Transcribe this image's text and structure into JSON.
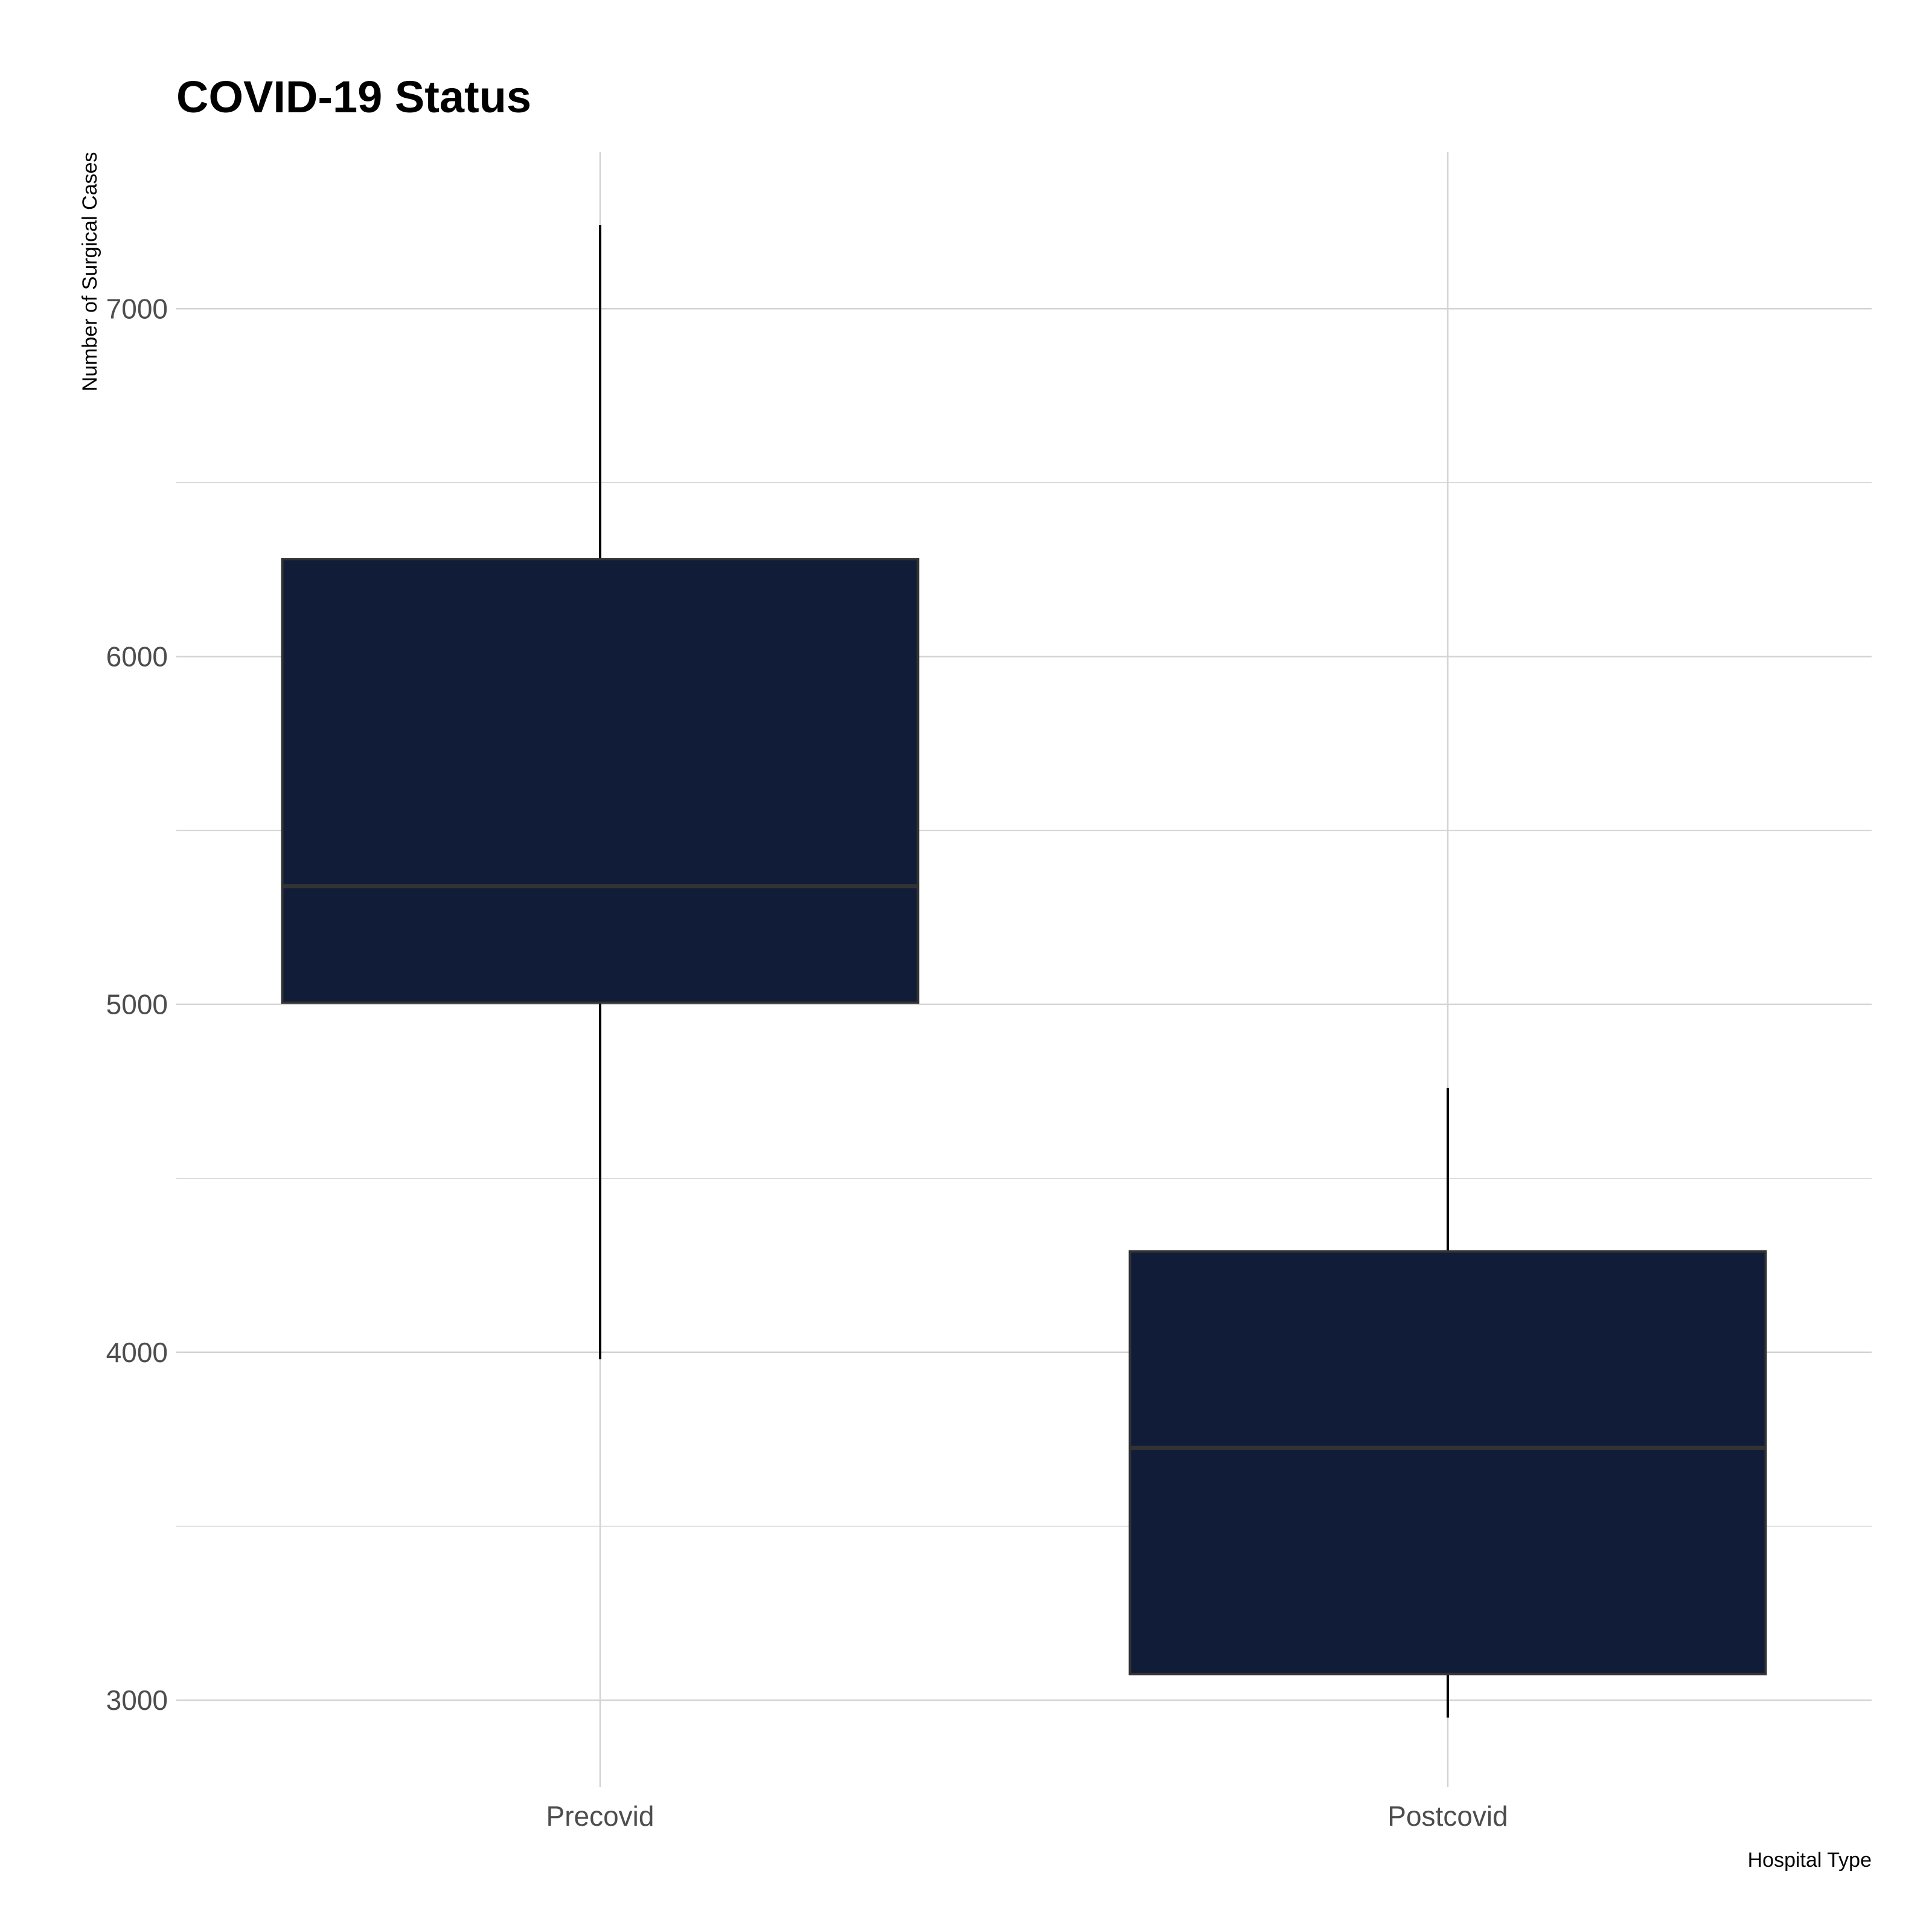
{
  "chart_data": {
    "type": "boxplot",
    "title": "COVID-19 Status",
    "xlabel": "Hospital Type",
    "ylabel": "Number of Surgical Cases",
    "categories": [
      "Precovid",
      "Postcovid"
    ],
    "boxes": [
      {
        "category": "Precovid",
        "whisker_low": 3980,
        "q1": 5005,
        "median": 5340,
        "q3": 6280,
        "whisker_high": 7240
      },
      {
        "category": "Postcovid",
        "whisker_low": 2950,
        "q1": 3075,
        "median": 3725,
        "q3": 4290,
        "whisker_high": 4760
      }
    ],
    "ylim": [
      2750,
      7450
    ],
    "yticks": [
      3000,
      4000,
      5000,
      6000,
      7000
    ],
    "ytick_labels": [
      "3000",
      "4000",
      "5000",
      "6000",
      "7000"
    ],
    "minor_yticks": [
      3500,
      4500,
      5500,
      6500
    ],
    "grid": true,
    "legend": "none",
    "colors": {
      "box_fill": "#111d38",
      "box_outline": "#333333",
      "median_line": "#333333",
      "whisker": "#000000",
      "grid": "#d3d3d3"
    }
  }
}
